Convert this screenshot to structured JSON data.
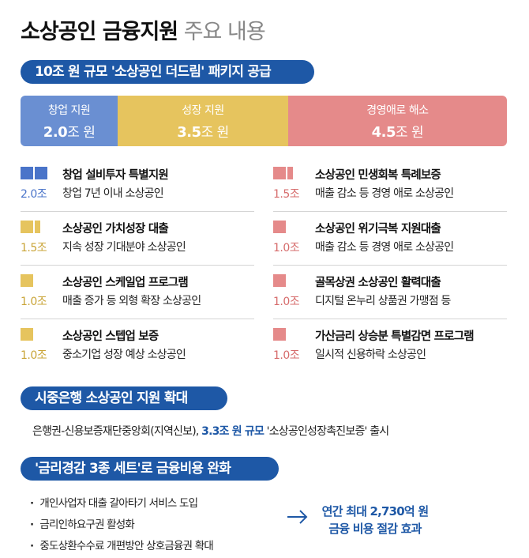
{
  "header": {
    "title_bold": "소상공인 금융지원",
    "title_light": "주요 내용"
  },
  "section1": {
    "heading": "10조 원 규모 '소상공인 더드림' 패키지 공급",
    "bar": [
      {
        "label": "창업 지원",
        "value": "2.0",
        "unit": "조 원",
        "color": "#6a8fd2",
        "amount": 2.0
      },
      {
        "label": "성장 지원",
        "value": "3.5",
        "unit": "조 원",
        "color": "#e6c45e",
        "amount": 3.5
      },
      {
        "label": "경영애로 해소",
        "value": "4.5",
        "unit": "조 원",
        "color": "#e58a8a",
        "amount": 4.5
      }
    ],
    "left_items": [
      {
        "name": "창업 설비투자 특별지원",
        "desc": "창업 7년 이내 소상공인",
        "amount": "2.0조",
        "color": "#4a74c9",
        "amount_color": "#4a74c9",
        "icon": "double-square-icon"
      },
      {
        "name": "소상공인 가치성장 대출",
        "desc": "지속 성장 기대분야 소상공인",
        "amount": "1.5조",
        "color": "#e6c45e",
        "amount_color": "#c9a437",
        "icon": "square-and-half-icon"
      },
      {
        "name": "소상공인 스케일업 프로그램",
        "desc": "매출 증가 등 외형 확장 소상공인",
        "amount": "1.0조",
        "color": "#e6c45e",
        "amount_color": "#c9a437",
        "icon": "square-icon"
      },
      {
        "name": "소상공인 스텝업 보증",
        "desc": "중소기업 성장 예상 소상공인",
        "amount": "1.0조",
        "color": "#e6c45e",
        "amount_color": "#c9a437",
        "icon": "square-icon"
      }
    ],
    "right_items": [
      {
        "name": "소상공인 민생회복 특례보증",
        "desc": "매출 감소 등 경영 애로 소상공인",
        "amount": "1.5조",
        "color": "#e58a8a",
        "amount_color": "#d66b6b",
        "icon": "square-and-half-icon"
      },
      {
        "name": "소상공인 위기극복 지원대출",
        "desc": "매출 감소 등 경영 애로 소상공인",
        "amount": "1.0조",
        "color": "#e58a8a",
        "amount_color": "#d66b6b",
        "icon": "square-icon"
      },
      {
        "name": "골목상권 소상공인 활력대출",
        "desc": "디지털 온누리 상품권 가맹점 등",
        "amount": "1.0조",
        "color": "#e58a8a",
        "amount_color": "#d66b6b",
        "icon": "square-icon"
      },
      {
        "name": "가산금리 상승분 특별감면 프로그램",
        "desc": "일시적 신용하락 소상공인",
        "amount": "1.0조",
        "color": "#e58a8a",
        "amount_color": "#d66b6b",
        "icon": "square-icon"
      }
    ]
  },
  "section2": {
    "heading": "시중은행 소상공인 지원 확대",
    "text_before": "은행권-신용보증재단중앙회(지역신보), ",
    "text_highlight": "3.3조 원 규모",
    "text_after": " '소상공인성장촉진보증' 출시"
  },
  "section3": {
    "heading": "'금리경감 3종 세트'로 금융비용 완화",
    "bullets": [
      "개인사업자 대출 갈아타기 서비스 도입",
      "금리인하요구권 활성화",
      "중도상환수수료 개편방안 상호금융권 확대"
    ],
    "effect_line1": "연간 최대 2,730억 원",
    "effect_line2": "금융 비용 절감 효과"
  }
}
